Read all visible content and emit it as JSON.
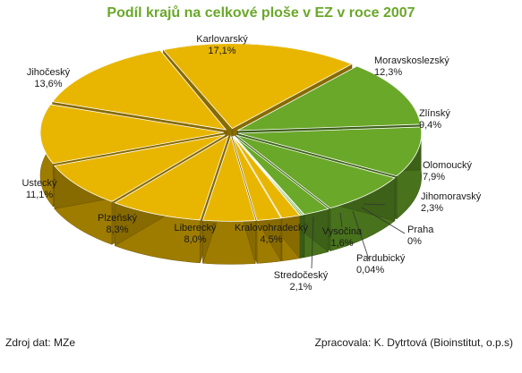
{
  "chart_data": {
    "type": "pie",
    "title": "Podíl krajů na celkové ploše v EZ v roce 2007",
    "slices": [
      {
        "name": "Karlovarský",
        "value": "17,1%",
        "pct": 17.1,
        "color": "#e8b600"
      },
      {
        "name": "Moravskoslezský",
        "value": "12,3%",
        "pct": 12.3,
        "color": "#6aa829"
      },
      {
        "name": "Zlínský",
        "value": "9,4%",
        "pct": 9.4,
        "color": "#6aa829"
      },
      {
        "name": "Olomoucký",
        "value": "7,9%",
        "pct": 7.9,
        "color": "#6aa829"
      },
      {
        "name": "Jihomoravský",
        "value": "2,3%",
        "pct": 2.3,
        "color": "#6aa829"
      },
      {
        "name": "Praha",
        "value": "0%",
        "pct": 0.0,
        "color": "#6aa829"
      },
      {
        "name": "Pardubický",
        "value": "0,04%",
        "pct": 0.04,
        "color": "#6aa829"
      },
      {
        "name": "Vysočina",
        "value": "1,6%",
        "pct": 1.6,
        "color": "#e8b600"
      },
      {
        "name": "Stredočeský",
        "value": "2,1%",
        "pct": 2.1,
        "color": "#e8b600"
      },
      {
        "name": "Kralovohradecký",
        "value": "4,5%",
        "pct": 4.5,
        "color": "#e8b600"
      },
      {
        "name": "Liberecký",
        "value": "8,0%",
        "pct": 8.0,
        "color": "#e8b600"
      },
      {
        "name": "Plzeňský",
        "value": "8,3%",
        "pct": 8.3,
        "color": "#e8b600"
      },
      {
        "name": "Ustecký",
        "value": "11,1%",
        "pct": 11.1,
        "color": "#e8b600"
      },
      {
        "name": "Jihočeský",
        "value": "13,6%",
        "pct": 13.6,
        "color": "#e8b600"
      }
    ],
    "colors": {
      "title": "#6aa829",
      "yellow_top": "#e8b600",
      "green_top": "#6aa829"
    }
  },
  "footer": {
    "source": "Zdroj dat: MZe",
    "author": "Zpracovala: K. Dytrtová (Bioinstitut, o.p.s)"
  }
}
